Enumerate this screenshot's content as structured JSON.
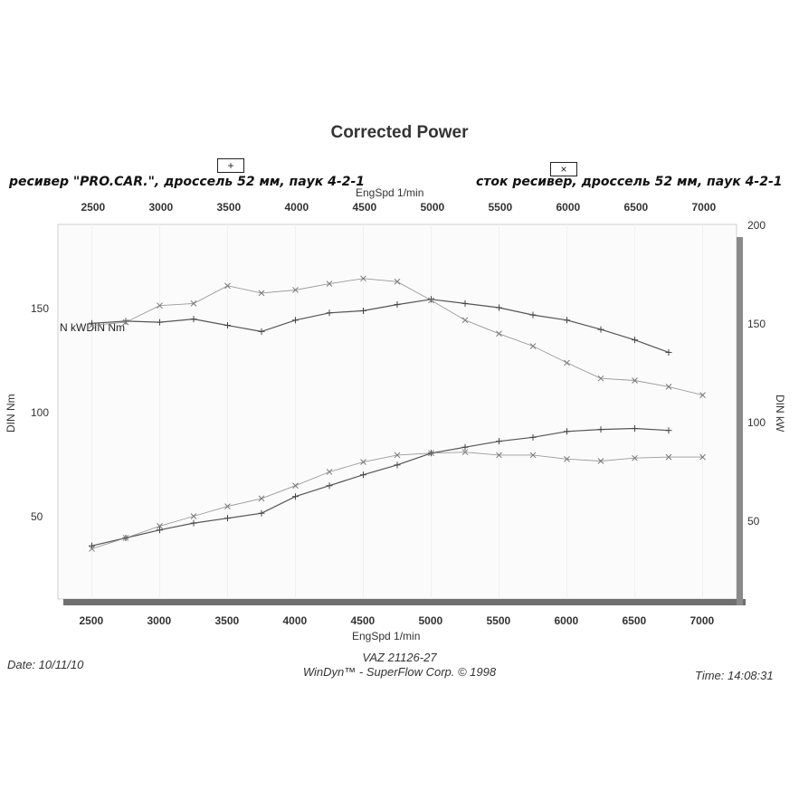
{
  "chart_data": {
    "type": "line",
    "title": "Corrected Power",
    "legend": [
      {
        "marker": "+",
        "text": "ресивер \"PRO.CAR.\", дроссель 52 мм, паук 4-2-1"
      },
      {
        "marker": "×",
        "text": "сток ресивер, дроссель 52 мм, паук 4-2-1"
      }
    ],
    "xlabel": "EngSpd 1/min",
    "xlabel_top": "EngSpd 1/min",
    "ylabel_left": "DIN Nm",
    "ylabel_right": "DIN kW",
    "series_label": "N kWDIN Nm",
    "xlim": [
      2250,
      7250
    ],
    "xticks": [
      2500,
      3000,
      3500,
      4000,
      4500,
      5000,
      5500,
      6000,
      6500,
      7000
    ],
    "ylim_left": [
      10,
      190
    ],
    "yticks_left": [
      50,
      100,
      150
    ],
    "ylim_right": [
      10,
      200
    ],
    "yticks_right": [
      50,
      100,
      150,
      200
    ],
    "grid": false,
    "series": [
      {
        "marker": "+",
        "axis": "left",
        "color": "#555555",
        "x": [
          2500,
          2750,
          3000,
          3250,
          3500,
          3750,
          4000,
          4250,
          4500,
          4750,
          5000,
          5250,
          5500,
          5750,
          6000,
          6250,
          6500,
          6750
        ],
        "y": [
          142.5,
          143.5,
          143,
          144.5,
          141.5,
          138.5,
          144,
          147.5,
          148.5,
          151.5,
          154,
          152,
          150,
          146.5,
          144,
          139.5,
          134.5,
          128.5
        ]
      },
      {
        "marker": "×",
        "axis": "left",
        "color": "#9a9a9a",
        "x": [
          2500,
          2750,
          3000,
          3250,
          3500,
          3750,
          4000,
          4250,
          4500,
          4750,
          5000,
          5250,
          5500,
          5750,
          6000,
          6250,
          6500,
          6750,
          7000
        ],
        "y": [
          141.5,
          143,
          151,
          152,
          160.5,
          157,
          158.5,
          161.5,
          164,
          162.5,
          153.5,
          144,
          137.5,
          131.5,
          123.5,
          116,
          115,
          112,
          108
        ]
      },
      {
        "marker": "+",
        "axis": "right",
        "color": "#555555",
        "x": [
          2500,
          2750,
          3000,
          3250,
          3500,
          3750,
          4000,
          4250,
          4500,
          4750,
          5000,
          5250,
          5500,
          5750,
          6000,
          6250,
          6500,
          6750
        ],
        "y": [
          37,
          41,
          45,
          48.5,
          51,
          53.5,
          62,
          67.5,
          73,
          78,
          84,
          87,
          90,
          92,
          95,
          96,
          96.5,
          95.5
        ]
      },
      {
        "marker": "×",
        "axis": "right",
        "color": "#9a9a9a",
        "x": [
          2500,
          2750,
          3000,
          3250,
          3500,
          3750,
          4000,
          4250,
          4500,
          4750,
          5000,
          5250,
          5500,
          5750,
          6000,
          6250,
          6500,
          6750,
          7000
        ],
        "y": [
          35.5,
          41,
          47,
          52,
          57,
          61,
          67.5,
          74.5,
          79.5,
          83,
          84,
          84.5,
          83,
          83,
          81,
          80,
          81.5,
          82,
          82
        ]
      }
    ]
  },
  "footer": {
    "date": "Date: 10/11/10",
    "model": "VAZ 21126-27",
    "brand": "WinDyn™ - SuperFlow Corp. © 1998",
    "time": "Time: 14:08:31"
  }
}
